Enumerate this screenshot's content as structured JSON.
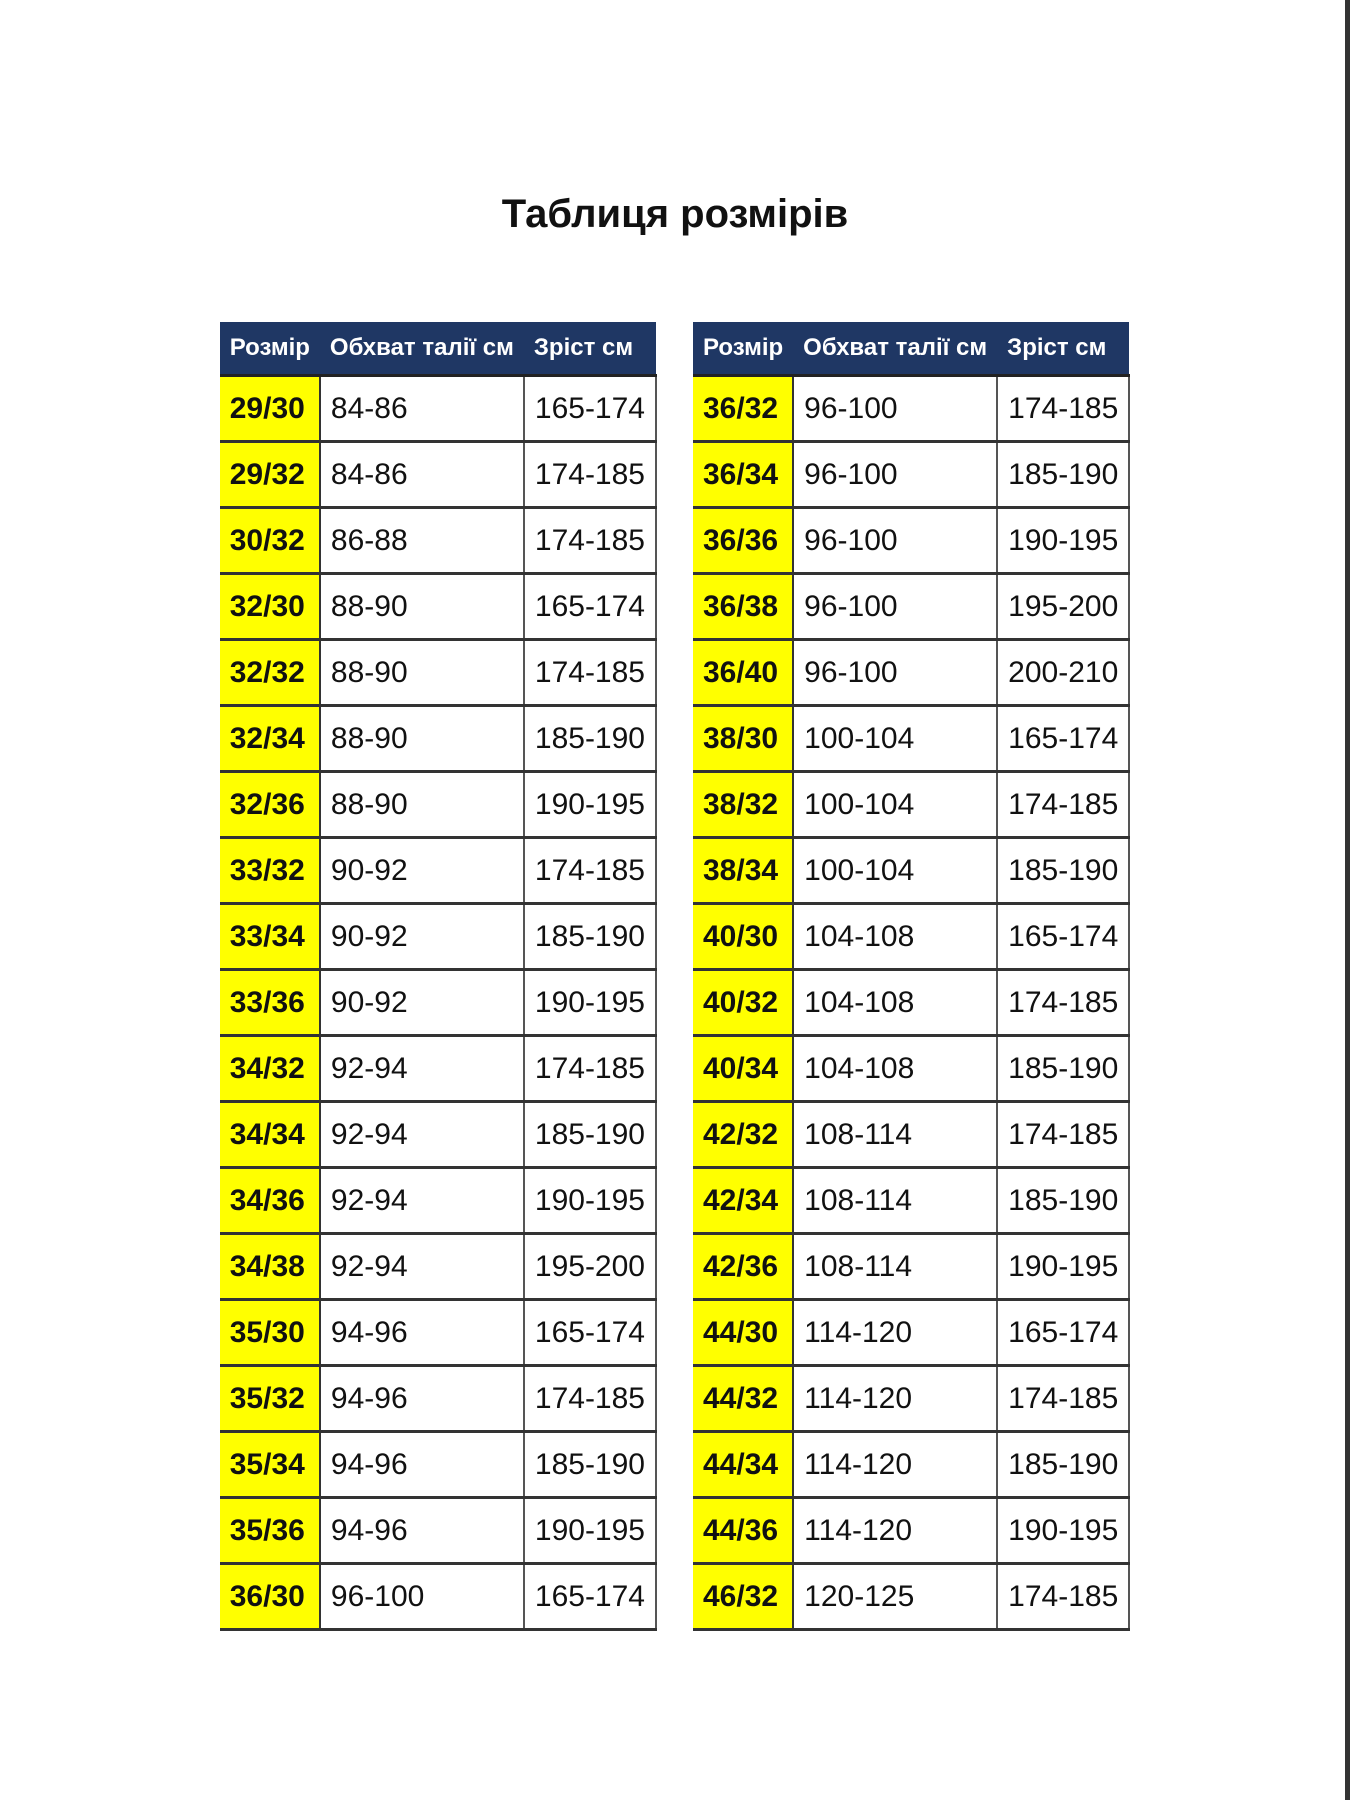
{
  "title": "Таблиця розмірів",
  "headers": [
    "Розмір",
    "Обхват талії см",
    "Зріст см"
  ],
  "colors": {
    "header_bg": "#1f3764",
    "size_bg": "#ffff00"
  },
  "left_rows": [
    [
      "29/30",
      "84-86",
      "165-174"
    ],
    [
      "29/32",
      "84-86",
      "174-185"
    ],
    [
      "30/32",
      "86-88",
      "174-185"
    ],
    [
      "32/30",
      "88-90",
      "165-174"
    ],
    [
      "32/32",
      "88-90",
      "174-185"
    ],
    [
      "32/34",
      "88-90",
      "185-190"
    ],
    [
      "32/36",
      "88-90",
      "190-195"
    ],
    [
      "33/32",
      "90-92",
      "174-185"
    ],
    [
      "33/34",
      "90-92",
      "185-190"
    ],
    [
      "33/36",
      "90-92",
      "190-195"
    ],
    [
      "34/32",
      "92-94",
      "174-185"
    ],
    [
      "34/34",
      "92-94",
      "185-190"
    ],
    [
      "34/36",
      "92-94",
      "190-195"
    ],
    [
      "34/38",
      "92-94",
      "195-200"
    ],
    [
      "35/30",
      "94-96",
      "165-174"
    ],
    [
      "35/32",
      "94-96",
      "174-185"
    ],
    [
      "35/34",
      "94-96",
      "185-190"
    ],
    [
      "35/36",
      "94-96",
      "190-195"
    ],
    [
      "36/30",
      "96-100",
      "165-174"
    ]
  ],
  "right_rows": [
    [
      "36/32",
      "96-100",
      "174-185"
    ],
    [
      "36/34",
      "96-100",
      "185-190"
    ],
    [
      "36/36",
      "96-100",
      "190-195"
    ],
    [
      "36/38",
      "96-100",
      "195-200"
    ],
    [
      "36/40",
      "96-100",
      "200-210"
    ],
    [
      "38/30",
      "100-104",
      "165-174"
    ],
    [
      "38/32",
      "100-104",
      "174-185"
    ],
    [
      "38/34",
      "100-104",
      "185-190"
    ],
    [
      "40/30",
      "104-108",
      "165-174"
    ],
    [
      "40/32",
      "104-108",
      "174-185"
    ],
    [
      "40/34",
      "104-108",
      "185-190"
    ],
    [
      "42/32",
      "108-114",
      "174-185"
    ],
    [
      "42/34",
      "108-114",
      "185-190"
    ],
    [
      "42/36",
      "108-114",
      "190-195"
    ],
    [
      "44/30",
      "114-120",
      "165-174"
    ],
    [
      "44/32",
      "114-120",
      "174-185"
    ],
    [
      "44/34",
      "114-120",
      "185-190"
    ],
    [
      "44/36",
      "114-120",
      "190-195"
    ],
    [
      "46/32",
      "120-125",
      "174-185"
    ]
  ]
}
